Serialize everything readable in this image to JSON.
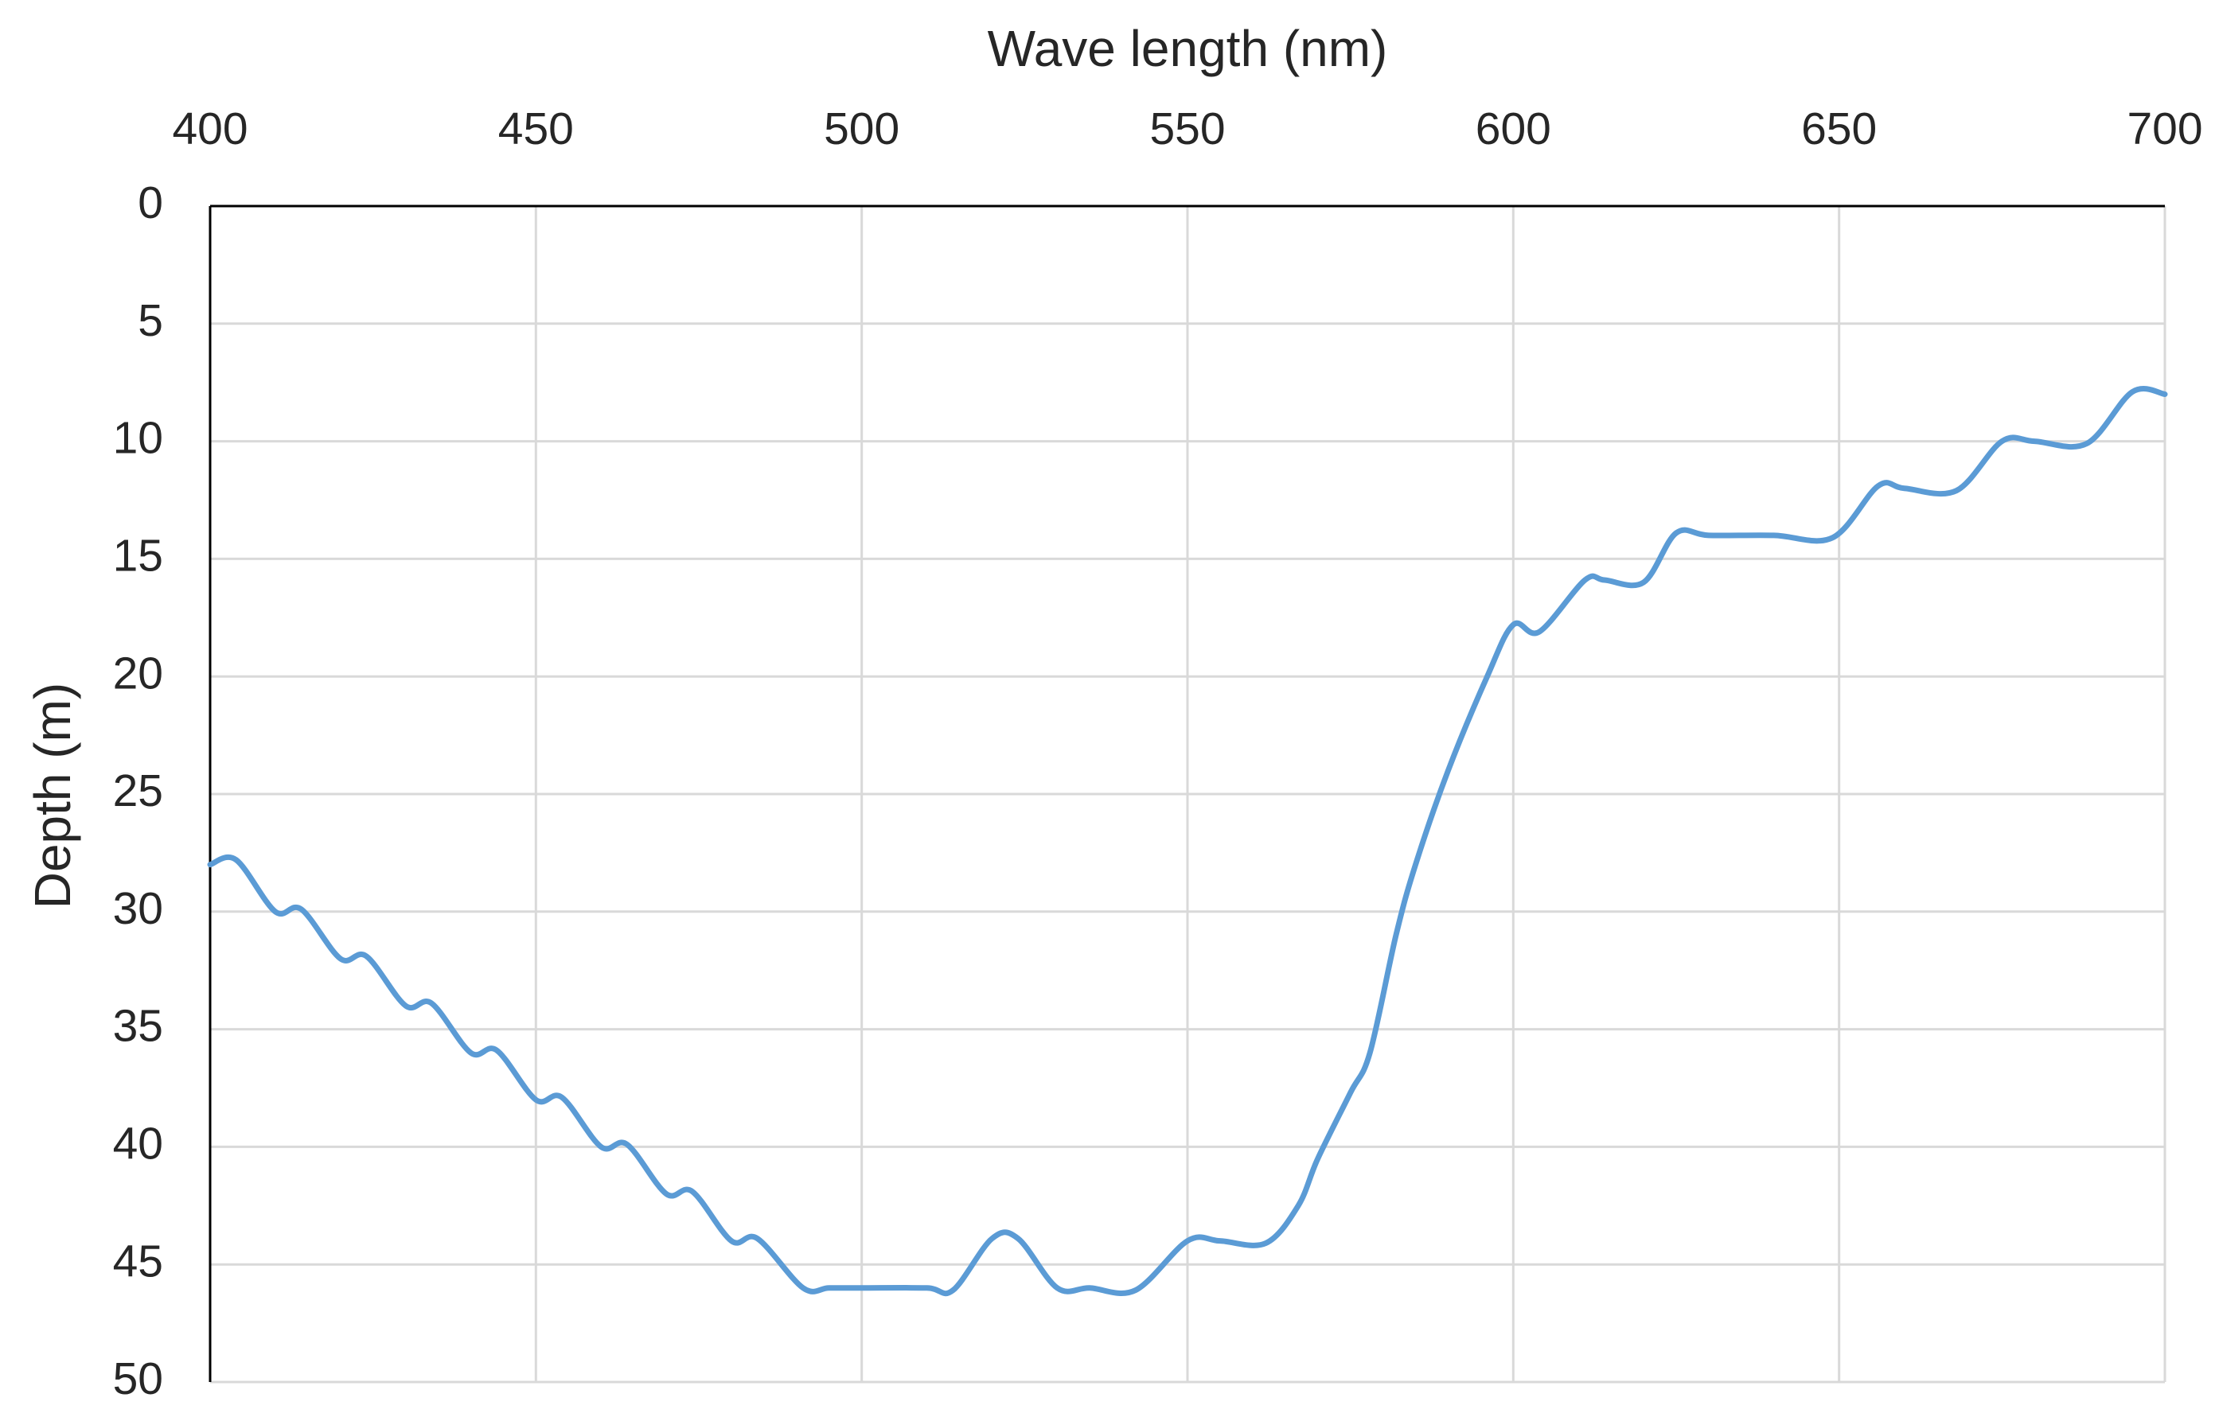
{
  "chart_data": {
    "type": "line",
    "x_label": "Wave length (nm)",
    "y_label": "Depth (m)",
    "x": [
      400,
      404,
      410,
      414,
      420,
      424,
      430,
      434,
      440,
      444,
      450,
      454,
      460,
      464,
      470,
      474,
      480,
      484,
      491,
      495,
      500,
      510,
      514,
      520,
      524,
      530,
      535,
      542,
      550,
      555,
      562,
      567,
      570,
      575,
      578,
      582,
      585,
      590,
      596,
      600,
      604,
      611,
      614,
      620,
      625,
      630,
      640,
      649,
      656,
      660,
      668,
      675,
      680,
      688,
      695,
      700
    ],
    "values": [
      28,
      27.8,
      30,
      29.9,
      32,
      31.9,
      34,
      33.9,
      36,
      35.9,
      38,
      37.9,
      40,
      39.9,
      42,
      41.9,
      44,
      43.9,
      46,
      46,
      46,
      46,
      46.1,
      43.9,
      43.9,
      46,
      46,
      46.1,
      44,
      44,
      44.1,
      42.5,
      40.5,
      37.7,
      36,
      31,
      28,
      24,
      20,
      17.8,
      18.1,
      15.9,
      15.9,
      16,
      13.9,
      14,
      14,
      14.1,
      11.9,
      12,
      12.1,
      10,
      10,
      10.1,
      7.9,
      8
    ],
    "color": "#5b9bd5",
    "xlim": [
      400,
      700
    ],
    "xticks": [
      400,
      450,
      500,
      550,
      600,
      650,
      700
    ],
    "ylim": [
      0,
      50
    ],
    "yticks": [
      0,
      5,
      10,
      15,
      20,
      25,
      30,
      35,
      40,
      45,
      50
    ],
    "x_axis_position": "top",
    "y_reversed": true,
    "grid": true
  }
}
